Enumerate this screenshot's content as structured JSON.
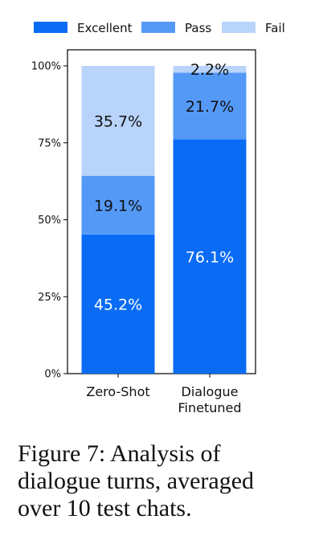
{
  "chart_data": {
    "type": "bar",
    "stacked": true,
    "percent": true,
    "categories": [
      "Zero-Shot",
      "Dialogue Finetuned"
    ],
    "category_lines": [
      [
        "Zero-Shot"
      ],
      [
        "Dialogue",
        "Finetuned"
      ]
    ],
    "series": [
      {
        "name": "Excellent",
        "color": "#0a6cf5",
        "label_color": "#ffffff",
        "values": [
          45.2,
          76.1
        ],
        "labels": [
          "45.2%",
          "76.1%"
        ]
      },
      {
        "name": "Pass",
        "color": "#5599f7",
        "label_color": "#111111",
        "values": [
          19.1,
          21.7
        ],
        "labels": [
          "19.1%",
          "21.7%"
        ]
      },
      {
        "name": "Fail",
        "color": "#b8d4fb",
        "label_color": "#111111",
        "values": [
          35.7,
          2.2
        ],
        "labels": [
          "35.7%",
          "2.2%"
        ]
      }
    ],
    "ylim": [
      0,
      100
    ],
    "yticks": [
      0,
      25,
      50,
      75,
      100
    ],
    "ytick_labels": [
      "0%",
      "25%",
      "50%",
      "75%",
      "100%"
    ],
    "legend": "top",
    "grid": false,
    "title": "",
    "xlabel": "",
    "ylabel": ""
  },
  "caption_lines": [
    "Figure 7:  Analysis of",
    "dialogue turns, averaged",
    "over 10 test chats."
  ]
}
